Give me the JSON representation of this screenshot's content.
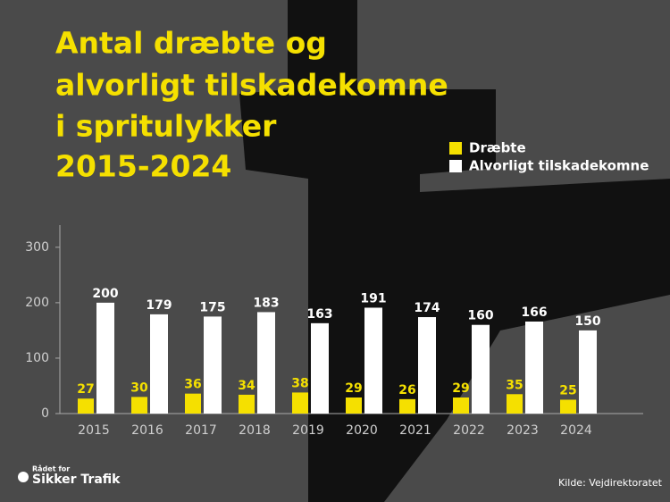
{
  "chart_data": {
    "type": "bar",
    "title": [
      "Antal dræbte og",
      "alvorligt tilskadekomne",
      "i spritulykker",
      "2015-2024"
    ],
    "categories": [
      "2015",
      "2016",
      "2017",
      "2018",
      "2019",
      "2020",
      "2021",
      "2022",
      "2023",
      "2024"
    ],
    "series": [
      {
        "name": "Dræbte",
        "color": "#f5e000",
        "values": [
          27,
          30,
          36,
          34,
          38,
          29,
          26,
          29,
          35,
          25
        ]
      },
      {
        "name": "Alvorligt tilskadekomne",
        "color": "#ffffff",
        "values": [
          200,
          179,
          175,
          183,
          163,
          191,
          174,
          160,
          166,
          150
        ]
      }
    ],
    "ylim": [
      0,
      340
    ],
    "yticks": [
      0,
      100,
      200,
      300
    ],
    "source": "Kilde: Vejdirektoratet"
  },
  "logo": {
    "line1": "Rådet for",
    "line2": "Sikker Trafik"
  }
}
